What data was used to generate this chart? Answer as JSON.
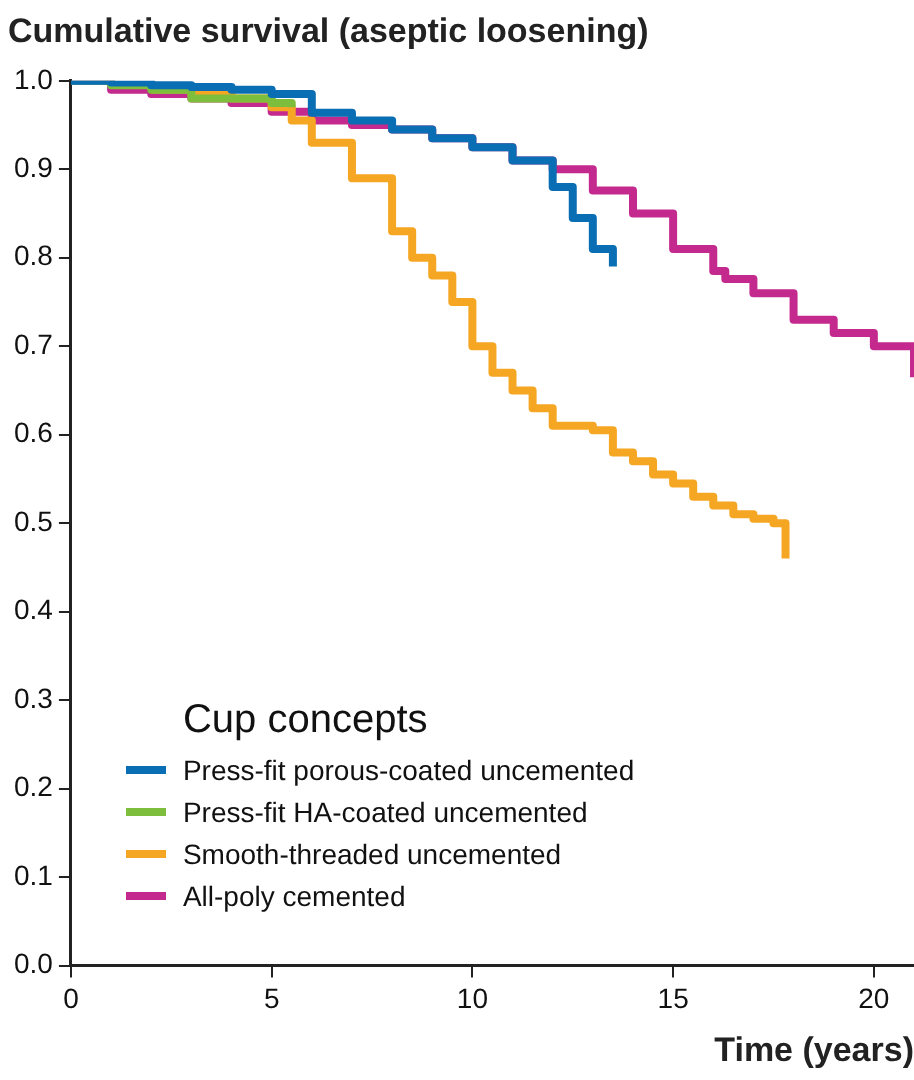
{
  "chart_data": {
    "type": "step",
    "title": "Cumulative survival (aseptic loosening)",
    "xlabel": "Time (years)",
    "legend_title": "Cup concepts",
    "xlim": [
      0,
      21
    ],
    "xticks": [
      0,
      5,
      10,
      15,
      20
    ],
    "ylim": [
      0,
      1
    ],
    "yticks": [
      {
        "value": 0,
        "label": "0.0"
      },
      {
        "value": 0.1,
        "label": "0.1"
      },
      {
        "value": 0.2,
        "label": "0.2"
      },
      {
        "value": 0.3,
        "label": "0.3"
      },
      {
        "value": 0.4,
        "label": "0.4"
      },
      {
        "value": 0.5,
        "label": "0.5"
      },
      {
        "value": 0.6,
        "label": "0.6"
      },
      {
        "value": 0.7,
        "label": "0.7"
      },
      {
        "value": 0.8,
        "label": "0.8"
      },
      {
        "value": 0.9,
        "label": "0.9"
      },
      {
        "value": 1,
        "label": "1.0"
      }
    ],
    "grid": false,
    "legend": "bottom left",
    "marker": "none",
    "line_style": "solid",
    "series": [
      {
        "name": "Press-fit porous-coated uncemented",
        "color": "#0a6eb4",
        "x": [
          0,
          1,
          2,
          3,
          4,
          5,
          6,
          7,
          8,
          9,
          10,
          11,
          12,
          12.5,
          13,
          13.5
        ],
        "values": [
          1,
          0.998,
          0.995,
          0.993,
          0.99,
          0.985,
          0.964,
          0.955,
          0.945,
          0.935,
          0.925,
          0.91,
          0.88,
          0.845,
          0.81,
          0.79
        ]
      },
      {
        "name": "Press-fit HA-coated uncemented",
        "color": "#7dbe3c",
        "x": [
          0,
          1,
          2,
          3,
          4,
          5,
          5.5
        ],
        "values": [
          1,
          0.995,
          0.99,
          0.98,
          0.98,
          0.975,
          0.97
        ]
      },
      {
        "name": "Smooth-threaded uncemented",
        "color": "#f5a623",
        "x": [
          2,
          3,
          4,
          5,
          5.5,
          6,
          7,
          8,
          8.5,
          9,
          9.5,
          10,
          10.5,
          11,
          11.5,
          12,
          12.5,
          13,
          13.5,
          14,
          14.5,
          15,
          15.5,
          16,
          16.5,
          17,
          17.5,
          17.8
        ],
        "values": [
          0.99,
          0.985,
          0.98,
          0.97,
          0.955,
          0.93,
          0.89,
          0.83,
          0.8,
          0.78,
          0.75,
          0.7,
          0.67,
          0.65,
          0.63,
          0.61,
          0.61,
          0.605,
          0.58,
          0.57,
          0.555,
          0.545,
          0.53,
          0.52,
          0.51,
          0.505,
          0.5,
          0.46
        ]
      },
      {
        "name": "All-poly cemented",
        "color": "#c42a8e",
        "x": [
          0,
          1,
          2,
          3,
          4,
          5,
          6,
          7,
          8,
          9,
          10,
          11,
          12,
          13,
          14,
          15,
          16,
          16.3,
          17,
          18,
          19,
          20,
          21
        ],
        "values": [
          1,
          0.99,
          0.985,
          0.98,
          0.975,
          0.965,
          0.955,
          0.95,
          0.945,
          0.935,
          0.925,
          0.91,
          0.9,
          0.876,
          0.85,
          0.81,
          0.785,
          0.776,
          0.76,
          0.73,
          0.715,
          0.7,
          0.665
        ]
      }
    ]
  }
}
